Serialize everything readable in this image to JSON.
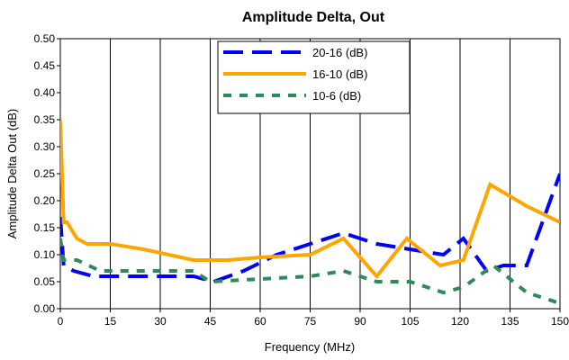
{
  "chart_data": {
    "type": "line",
    "title": "Amplitude Delta, Out",
    "xlabel": "Frequency (MHz)",
    "ylabel": "Amplitude Delta Out (dB)",
    "xlim": [
      0,
      150
    ],
    "ylim": [
      0,
      0.5
    ],
    "xticks": [
      "0",
      "15",
      "30",
      "45",
      "60",
      "75",
      "90",
      "105",
      "120",
      "135",
      "150"
    ],
    "yticks": [
      "0.00",
      "0.05",
      "0.10",
      "0.15",
      "0.20",
      "0.25",
      "0.30",
      "0.35",
      "0.40",
      "0.45",
      "0.50"
    ],
    "grid": "vertical",
    "legend_position": "top-center",
    "series": [
      {
        "name": "20-16 (dB)",
        "color": "#0000ff",
        "style": "dashed",
        "points": [
          [
            0,
            0.17
          ],
          [
            1,
            0.08
          ],
          [
            4,
            0.07
          ],
          [
            10,
            0.06
          ],
          [
            20,
            0.06
          ],
          [
            30,
            0.06
          ],
          [
            40,
            0.06
          ],
          [
            46,
            0.05
          ],
          [
            55,
            0.07
          ],
          [
            65,
            0.1
          ],
          [
            75,
            0.12
          ],
          [
            85,
            0.14
          ],
          [
            95,
            0.12
          ],
          [
            105,
            0.11
          ],
          [
            115,
            0.1
          ],
          [
            121,
            0.13
          ],
          [
            128,
            0.07
          ],
          [
            133,
            0.08
          ],
          [
            140,
            0.08
          ],
          [
            150,
            0.25
          ]
        ]
      },
      {
        "name": "16-10 (dB)",
        "color": "#ffa500",
        "style": "solid",
        "points": [
          [
            0,
            0.35
          ],
          [
            1,
            0.16
          ],
          [
            2,
            0.16
          ],
          [
            5,
            0.13
          ],
          [
            8,
            0.12
          ],
          [
            15,
            0.12
          ],
          [
            25,
            0.11
          ],
          [
            40,
            0.09
          ],
          [
            50,
            0.09
          ],
          [
            60,
            0.095
          ],
          [
            75,
            0.1
          ],
          [
            85,
            0.13
          ],
          [
            95,
            0.06
          ],
          [
            104,
            0.13
          ],
          [
            114,
            0.08
          ],
          [
            121,
            0.09
          ],
          [
            129,
            0.23
          ],
          [
            140,
            0.19
          ],
          [
            150,
            0.16
          ]
        ]
      },
      {
        "name": "10-6 (dB)",
        "color": "#2e8b57",
        "style": "dotted",
        "points": [
          [
            0,
            0.13
          ],
          [
            1,
            0.09
          ],
          [
            5,
            0.09
          ],
          [
            12,
            0.07
          ],
          [
            25,
            0.07
          ],
          [
            40,
            0.07
          ],
          [
            45,
            0.05
          ],
          [
            60,
            0.055
          ],
          [
            75,
            0.06
          ],
          [
            85,
            0.07
          ],
          [
            95,
            0.05
          ],
          [
            105,
            0.05
          ],
          [
            115,
            0.03
          ],
          [
            121,
            0.04
          ],
          [
            130,
            0.08
          ],
          [
            140,
            0.03
          ],
          [
            150,
            0.01
          ]
        ]
      }
    ]
  }
}
